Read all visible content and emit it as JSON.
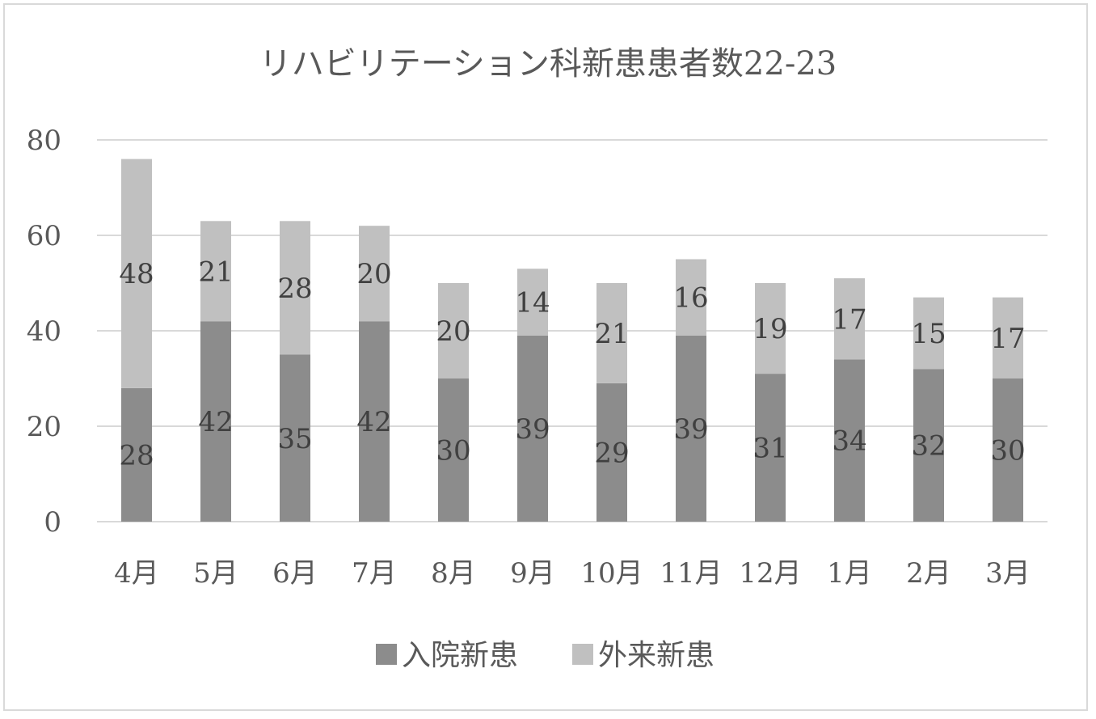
{
  "chart_data": {
    "type": "bar",
    "stacked": true,
    "title": "リハビリテーション科新患患者数22-23",
    "xlabel": "",
    "ylabel": "",
    "categories": [
      "4月",
      "5月",
      "6月",
      "7月",
      "8月",
      "9月",
      "10月",
      "11月",
      "12月",
      "1月",
      "2月",
      "3月"
    ],
    "series": [
      {
        "name": "入院新患",
        "color": "#8c8c8c",
        "values": [
          28,
          42,
          35,
          42,
          30,
          39,
          29,
          39,
          31,
          34,
          32,
          30
        ]
      },
      {
        "name": "外来新患",
        "color": "#c0c0c0",
        "values": [
          48,
          21,
          28,
          20,
          20,
          14,
          21,
          16,
          19,
          17,
          15,
          17
        ]
      }
    ],
    "ylim": [
      0,
      80
    ],
    "yticks": [
      0,
      20,
      40,
      60,
      80
    ],
    "grid": true,
    "legend_position": "bottom",
    "data_labels": true
  }
}
